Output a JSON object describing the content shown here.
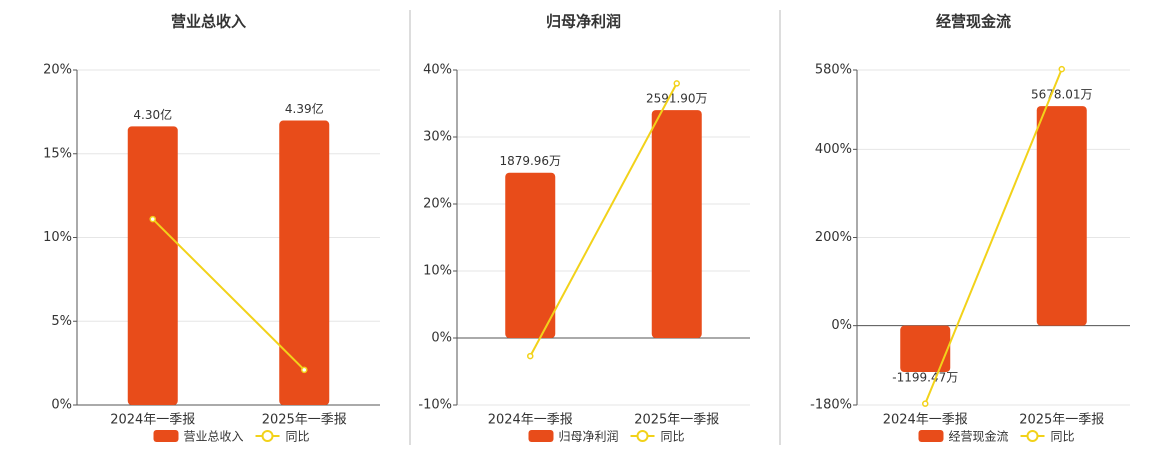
{
  "chart_data": [
    {
      "type": "bar",
      "title": "营业总收入",
      "categories": [
        "2024年一季报",
        "2025年一季报"
      ],
      "series": [
        {
          "name": "营业总收入",
          "color": "#e84c1a",
          "values": [
            4.3,
            4.39
          ],
          "value_labels": [
            "4.30亿",
            "4.39亿"
          ],
          "axis": "y2"
        },
        {
          "name": "同比",
          "type": "line",
          "color": "#f2d21a",
          "values": [
            11.1,
            2.1
          ]
        }
      ],
      "ylim": [
        0,
        20
      ],
      "yticks": [
        {
          "value": 0,
          "label": "0%"
        },
        {
          "value": 5,
          "label": "5%"
        },
        {
          "value": 10,
          "label": "10%"
        },
        {
          "value": 15,
          "label": "15%"
        },
        {
          "value": 20,
          "label": "20%"
        }
      ],
      "y2lim": [
        0,
        5.17
      ],
      "grid": true
    },
    {
      "type": "bar",
      "title": "归母净利润",
      "categories": [
        "2024年一季报",
        "2025年一季报"
      ],
      "series": [
        {
          "name": "归母净利润",
          "color": "#e84c1a",
          "values": [
            1879.96,
            2591.9
          ],
          "value_labels": [
            "1879.96万",
            "2591.90万"
          ],
          "axis": "y2"
        },
        {
          "name": "同比",
          "type": "line",
          "color": "#f2d21a",
          "values": [
            -2.7,
            38
          ]
        }
      ],
      "ylim": [
        -10,
        40
      ],
      "yticks": [
        {
          "value": -10,
          "label": "-10%"
        },
        {
          "value": 0,
          "label": "0%"
        },
        {
          "value": 10,
          "label": "10%"
        },
        {
          "value": 20,
          "label": "20%"
        },
        {
          "value": 30,
          "label": "30%"
        },
        {
          "value": 40,
          "label": "40%"
        }
      ],
      "y2lim": [
        -762,
        3048
      ],
      "grid": true
    },
    {
      "type": "bar",
      "title": "经营现金流",
      "categories": [
        "2024年一季报",
        "2025年一季报"
      ],
      "series": [
        {
          "name": "经营现金流",
          "color": "#e84c1a",
          "values": [
            -1199.47,
            5678.01
          ],
          "value_labels": [
            "-1199.47万",
            "5678.01万"
          ],
          "axis": "y2"
        },
        {
          "name": "同比",
          "type": "line",
          "color": "#f2d21a",
          "values": [
            -177,
            582
          ]
        }
      ],
      "ylim": [
        -180,
        580
      ],
      "yticks": [
        {
          "value": -180,
          "label": "-180%"
        },
        {
          "value": 0,
          "label": "0%"
        },
        {
          "value": 200,
          "label": "200%"
        },
        {
          "value": 400,
          "label": "400%"
        },
        {
          "value": 580,
          "label": "580%"
        }
      ],
      "y2lim": [
        -2052,
        6612
      ],
      "grid": true
    }
  ]
}
